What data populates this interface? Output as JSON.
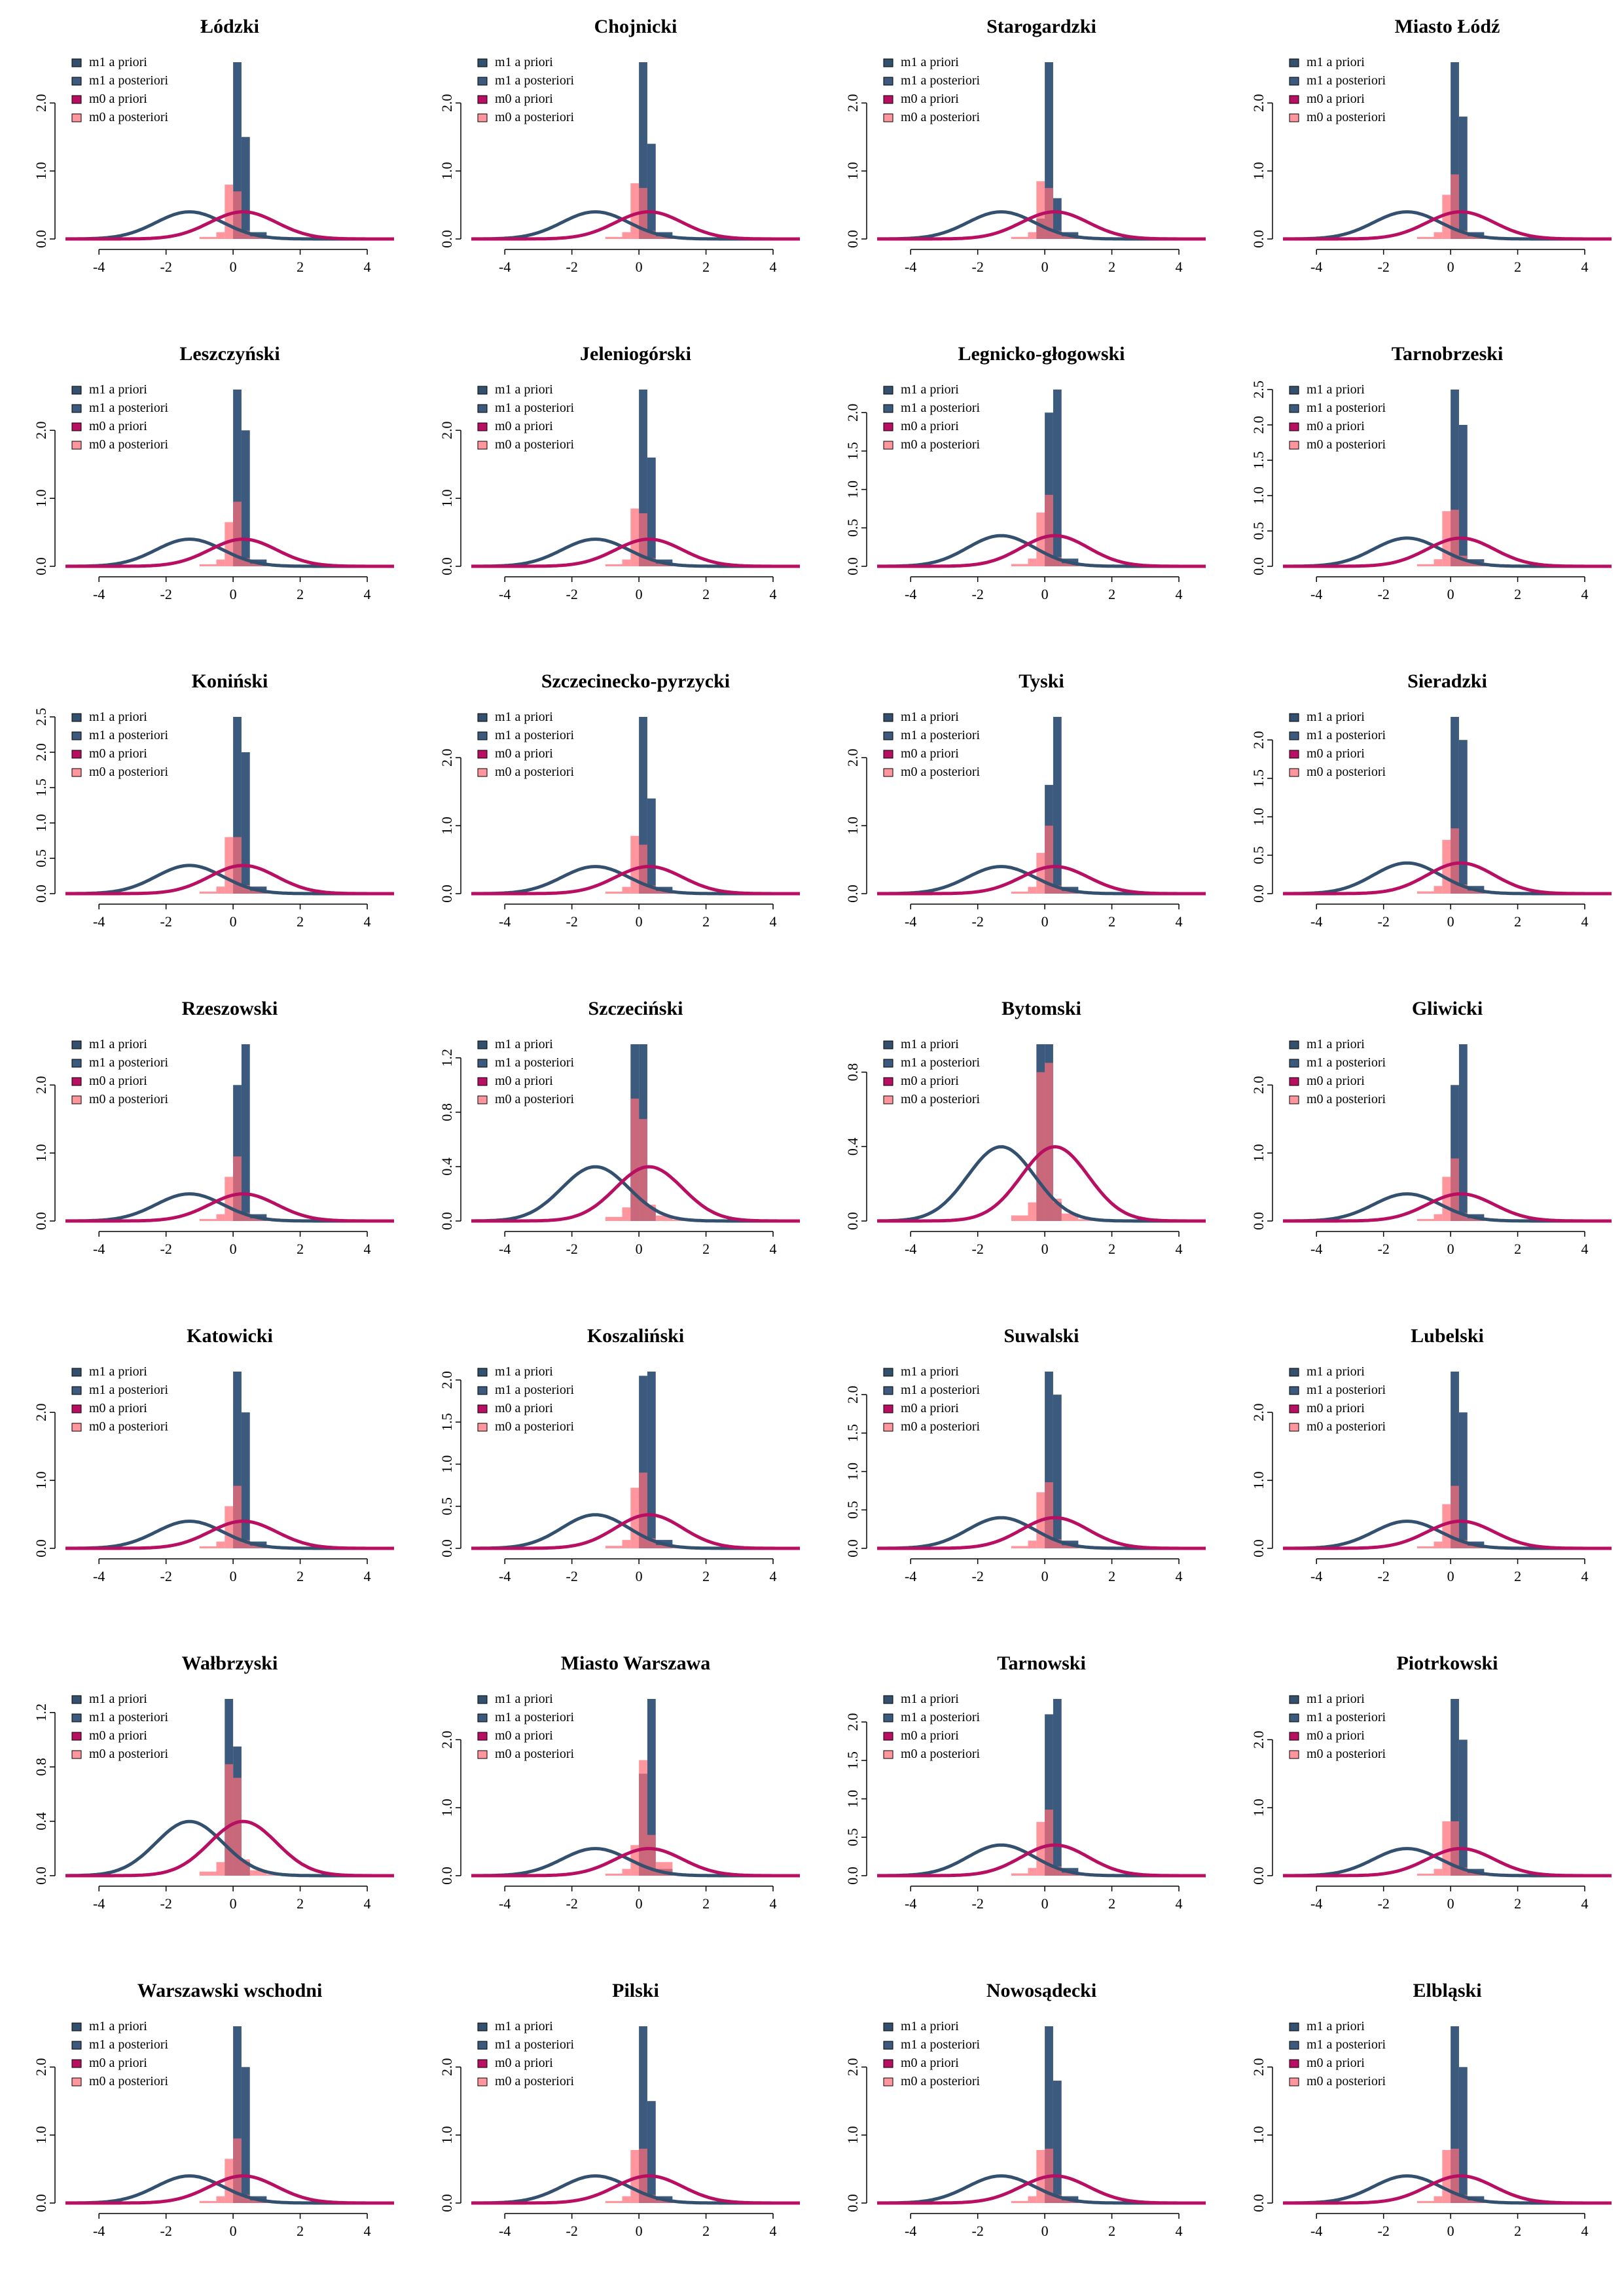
{
  "chart_data": {
    "type": "grid",
    "legend_position": "top-left",
    "colors": {
      "m1_prior": "#33506F",
      "m1_posterior": "#3B5A7D",
      "m0_prior": "#B80F63",
      "m0_posterior": "#FF6E78"
    },
    "legend_entries": [
      "m1 a priori",
      "m1 a posteriori",
      "m0 a priori",
      "m0 a posteriori"
    ],
    "x_ticks": [
      "-4",
      "-2",
      "0",
      "2",
      "4"
    ],
    "xlim": [
      -5,
      4.8
    ],
    "prior_curves": {
      "m1_prior": {
        "mean": -1.3,
        "sd": 1
      },
      "m0_prior": {
        "mean": 0.3,
        "sd": 1
      }
    },
    "bin_edges": [
      -1,
      -0.5,
      -0.25,
      0,
      0.25,
      0.5,
      1,
      1.5
    ],
    "panels": [
      {
        "title": "Łódzki",
        "ylim": [
          0,
          2.6
        ],
        "yticks": [
          "0.0",
          "1.0",
          "2.0"
        ],
        "m1_hist": [
          0,
          0,
          0,
          2.6,
          1.5,
          0.1,
          0,
          0
        ],
        "m0_hist": [
          0.03,
          0.1,
          0.8,
          0.7,
          0.12,
          0.04,
          0.01,
          0
        ]
      },
      {
        "title": "Chojnicki",
        "ylim": [
          0,
          2.6
        ],
        "yticks": [
          "0.0",
          "1.0",
          "2.0"
        ],
        "m1_hist": [
          0,
          0,
          0,
          2.6,
          1.4,
          0.1,
          0,
          0
        ],
        "m0_hist": [
          0.03,
          0.1,
          0.82,
          0.75,
          0.12,
          0.04,
          0.01,
          0
        ]
      },
      {
        "title": "Starogardzki",
        "ylim": [
          0,
          2.6
        ],
        "yticks": [
          "0.0",
          "1.0",
          "2.0"
        ],
        "m1_hist": [
          0,
          0,
          0.3,
          2.6,
          0.6,
          0.1,
          0,
          0
        ],
        "m0_hist": [
          0.03,
          0.1,
          0.85,
          0.75,
          0.12,
          0.04,
          0.01,
          0
        ]
      },
      {
        "title": "Miasto Łódź",
        "ylim": [
          0,
          2.6
        ],
        "yticks": [
          "0.0",
          "1.0",
          "2.0"
        ],
        "m1_hist": [
          0,
          0,
          0,
          2.6,
          1.8,
          0.1,
          0,
          0
        ],
        "m0_hist": [
          0.03,
          0.1,
          0.65,
          0.95,
          0.12,
          0.04,
          0.01,
          0
        ]
      },
      {
        "title": "Leszczyński",
        "ylim": [
          0,
          2.6
        ],
        "yticks": [
          "0.0",
          "1.0",
          "2.0"
        ],
        "m1_hist": [
          0,
          0,
          0,
          2.6,
          2.0,
          0.1,
          0,
          0
        ],
        "m0_hist": [
          0.03,
          0.1,
          0.65,
          0.95,
          0.12,
          0.04,
          0.01,
          0
        ]
      },
      {
        "title": "Jeleniogórski",
        "ylim": [
          0,
          2.6
        ],
        "yticks": [
          "0.0",
          "1.0",
          "2.0"
        ],
        "m1_hist": [
          0,
          0,
          0,
          2.6,
          1.6,
          0.1,
          0,
          0
        ],
        "m0_hist": [
          0.03,
          0.1,
          0.85,
          0.78,
          0.12,
          0.04,
          0.01,
          0
        ]
      },
      {
        "title": "Legnicko-głogowski",
        "ylim": [
          0,
          2.3
        ],
        "yticks": [
          "0.0",
          "0.5",
          "1.0",
          "1.5",
          "2.0"
        ],
        "m1_hist": [
          0,
          0,
          0,
          2.0,
          2.3,
          0.1,
          0,
          0
        ],
        "m0_hist": [
          0.03,
          0.1,
          0.7,
          0.93,
          0.12,
          0.04,
          0.01,
          0
        ]
      },
      {
        "title": "Tarnobrzeski",
        "ylim": [
          0,
          2.5
        ],
        "yticks": [
          "0.0",
          "0.5",
          "1.0",
          "1.5",
          "2.0",
          "2.5"
        ],
        "m1_hist": [
          0,
          0,
          0,
          2.5,
          2.0,
          0.1,
          0,
          0
        ],
        "m0_hist": [
          0.03,
          0.1,
          0.78,
          0.8,
          0.15,
          0.06,
          0.01,
          0
        ]
      },
      {
        "title": "Koniński",
        "ylim": [
          0,
          2.5
        ],
        "yticks": [
          "0.0",
          "0.5",
          "1.0",
          "1.5",
          "2.0",
          "2.5"
        ],
        "m1_hist": [
          0,
          0,
          0,
          2.5,
          2.0,
          0.1,
          0,
          0
        ],
        "m0_hist": [
          0.03,
          0.1,
          0.8,
          0.8,
          0.12,
          0.04,
          0.01,
          0
        ]
      },
      {
        "title": "Szczecinecko-pyrzycki",
        "ylim": [
          0,
          2.6
        ],
        "yticks": [
          "0.0",
          "1.0",
          "2.0"
        ],
        "m1_hist": [
          0,
          0,
          0,
          2.6,
          1.4,
          0.1,
          0,
          0
        ],
        "m0_hist": [
          0.03,
          0.1,
          0.85,
          0.72,
          0.12,
          0.04,
          0.01,
          0
        ]
      },
      {
        "title": "Tyski",
        "ylim": [
          0,
          2.6
        ],
        "yticks": [
          "0.0",
          "1.0",
          "2.0"
        ],
        "m1_hist": [
          0,
          0,
          0,
          1.6,
          2.6,
          0.1,
          0,
          0
        ],
        "m0_hist": [
          0.03,
          0.1,
          0.6,
          1.0,
          0.12,
          0.04,
          0.01,
          0
        ]
      },
      {
        "title": "Sieradzki",
        "ylim": [
          0,
          2.3
        ],
        "yticks": [
          "0.0",
          "0.5",
          "1.0",
          "1.5",
          "2.0"
        ],
        "m1_hist": [
          0,
          0,
          0,
          2.3,
          2.0,
          0.1,
          0,
          0
        ],
        "m0_hist": [
          0.03,
          0.1,
          0.7,
          0.85,
          0.12,
          0.04,
          0.01,
          0
        ]
      },
      {
        "title": "Rzeszowski",
        "ylim": [
          0,
          2.6
        ],
        "yticks": [
          "0.0",
          "1.0",
          "2.0"
        ],
        "m1_hist": [
          0,
          0,
          0,
          2.0,
          2.6,
          0.1,
          0,
          0
        ],
        "m0_hist": [
          0.03,
          0.1,
          0.65,
          0.95,
          0.12,
          0.04,
          0.01,
          0
        ]
      },
      {
        "title": "Szczeciński",
        "ylim": [
          0,
          1.3
        ],
        "yticks": [
          "0.0",
          "0.4",
          "0.8",
          "1.2"
        ],
        "m1_hist": [
          0,
          0,
          1.3,
          1.3,
          0.1,
          0,
          0,
          0
        ],
        "m0_hist": [
          0.03,
          0.1,
          0.9,
          0.75,
          0.12,
          0.04,
          0.01,
          0
        ]
      },
      {
        "title": "Bytomski",
        "ylim": [
          0,
          0.95
        ],
        "yticks": [
          "0.0",
          "0.4",
          "0.8"
        ],
        "m1_hist": [
          0,
          0,
          0.95,
          0.95,
          0.1,
          0,
          0,
          0
        ],
        "m0_hist": [
          0.03,
          0.1,
          0.8,
          0.85,
          0.12,
          0.04,
          0.01,
          0
        ]
      },
      {
        "title": "Gliwicki",
        "ylim": [
          0,
          2.6
        ],
        "yticks": [
          "0.0",
          "1.0",
          "2.0"
        ],
        "m1_hist": [
          0,
          0,
          0,
          2.0,
          2.6,
          0.1,
          0,
          0
        ],
        "m0_hist": [
          0.03,
          0.1,
          0.65,
          0.92,
          0.12,
          0.04,
          0.01,
          0
        ]
      },
      {
        "title": "Katowicki",
        "ylim": [
          0,
          2.6
        ],
        "yticks": [
          "0.0",
          "1.0",
          "2.0"
        ],
        "m1_hist": [
          0,
          0,
          0,
          2.6,
          2.0,
          0.1,
          0,
          0
        ],
        "m0_hist": [
          0.03,
          0.1,
          0.62,
          0.92,
          0.12,
          0.04,
          0.01,
          0
        ]
      },
      {
        "title": "Koszaliński",
        "ylim": [
          0,
          2.1
        ],
        "yticks": [
          "0.0",
          "0.5",
          "1.0",
          "1.5",
          "2.0"
        ],
        "m1_hist": [
          0,
          0,
          0,
          2.05,
          2.1,
          0.1,
          0,
          0
        ],
        "m0_hist": [
          0.03,
          0.1,
          0.72,
          0.9,
          0.12,
          0.04,
          0.01,
          0
        ]
      },
      {
        "title": "Suwalski",
        "ylim": [
          0,
          2.3
        ],
        "yticks": [
          "0.0",
          "0.5",
          "1.0",
          "1.5",
          "2.0"
        ],
        "m1_hist": [
          0,
          0,
          0,
          2.3,
          2.0,
          0.1,
          0,
          0
        ],
        "m0_hist": [
          0.03,
          0.1,
          0.73,
          0.86,
          0.12,
          0.04,
          0.01,
          0
        ]
      },
      {
        "title": "Lubelski",
        "ylim": [
          0,
          2.6
        ],
        "yticks": [
          "0.0",
          "1.0",
          "2.0"
        ],
        "m1_hist": [
          0,
          0,
          0,
          2.6,
          2.0,
          0.1,
          0,
          0
        ],
        "m0_hist": [
          0.03,
          0.1,
          0.65,
          0.92,
          0.12,
          0.04,
          0.01,
          0
        ]
      },
      {
        "title": "Wałbrzyski",
        "ylim": [
          0,
          1.3
        ],
        "yticks": [
          "0.0",
          "0.4",
          "0.8",
          "1.2"
        ],
        "m1_hist": [
          0,
          0,
          1.3,
          0.95,
          0.1,
          0,
          0,
          0
        ],
        "m0_hist": [
          0.03,
          0.1,
          0.82,
          0.72,
          0.12,
          0.04,
          0.01,
          0
        ]
      },
      {
        "title": "Miasto Warszawa",
        "ylim": [
          0,
          2.6
        ],
        "yticks": [
          "0.0",
          "1.0",
          "2.0"
        ],
        "m1_hist": [
          0,
          0,
          0,
          1.5,
          2.6,
          0.1,
          0,
          0
        ],
        "m0_hist": [
          0.03,
          0.1,
          0.45,
          1.7,
          0.6,
          0.2,
          0.01,
          0
        ]
      },
      {
        "title": "Tarnowski",
        "ylim": [
          0,
          2.3
        ],
        "yticks": [
          "0.0",
          "0.5",
          "1.0",
          "1.5",
          "2.0"
        ],
        "m1_hist": [
          0,
          0,
          0,
          2.1,
          2.3,
          0.1,
          0,
          0
        ],
        "m0_hist": [
          0.03,
          0.1,
          0.7,
          0.86,
          0.12,
          0.04,
          0.01,
          0
        ]
      },
      {
        "title": "Piotrkowski",
        "ylim": [
          0,
          2.6
        ],
        "yticks": [
          "0.0",
          "1.0",
          "2.0"
        ],
        "m1_hist": [
          0,
          0,
          0,
          2.6,
          2.0,
          0.1,
          0,
          0
        ],
        "m0_hist": [
          0.03,
          0.1,
          0.8,
          0.8,
          0.12,
          0.04,
          0.01,
          0
        ]
      },
      {
        "title": "Warszawski wschodni",
        "ylim": [
          0,
          2.6
        ],
        "yticks": [
          "0.0",
          "1.0",
          "2.0"
        ],
        "m1_hist": [
          0,
          0,
          0,
          2.6,
          2.0,
          0.1,
          0,
          0
        ],
        "m0_hist": [
          0.03,
          0.1,
          0.65,
          0.95,
          0.12,
          0.04,
          0.01,
          0
        ]
      },
      {
        "title": "Pilski",
        "ylim": [
          0,
          2.6
        ],
        "yticks": [
          "0.0",
          "1.0",
          "2.0"
        ],
        "m1_hist": [
          0,
          0,
          0,
          2.6,
          1.5,
          0.1,
          0,
          0
        ],
        "m0_hist": [
          0.03,
          0.1,
          0.78,
          0.8,
          0.12,
          0.04,
          0.01,
          0
        ]
      },
      {
        "title": "Nowosądecki",
        "ylim": [
          0,
          2.6
        ],
        "yticks": [
          "0.0",
          "1.0",
          "2.0"
        ],
        "m1_hist": [
          0,
          0,
          0,
          2.6,
          1.8,
          0.1,
          0,
          0
        ],
        "m0_hist": [
          0.03,
          0.1,
          0.78,
          0.8,
          0.12,
          0.04,
          0.01,
          0
        ]
      },
      {
        "title": "Elbląski",
        "ylim": [
          0,
          2.6
        ],
        "yticks": [
          "0.0",
          "1.0",
          "2.0"
        ],
        "m1_hist": [
          0,
          0,
          0,
          2.6,
          2.0,
          0.1,
          0,
          0
        ],
        "m0_hist": [
          0.03,
          0.1,
          0.78,
          0.8,
          0.12,
          0.04,
          0.01,
          0
        ]
      }
    ]
  }
}
